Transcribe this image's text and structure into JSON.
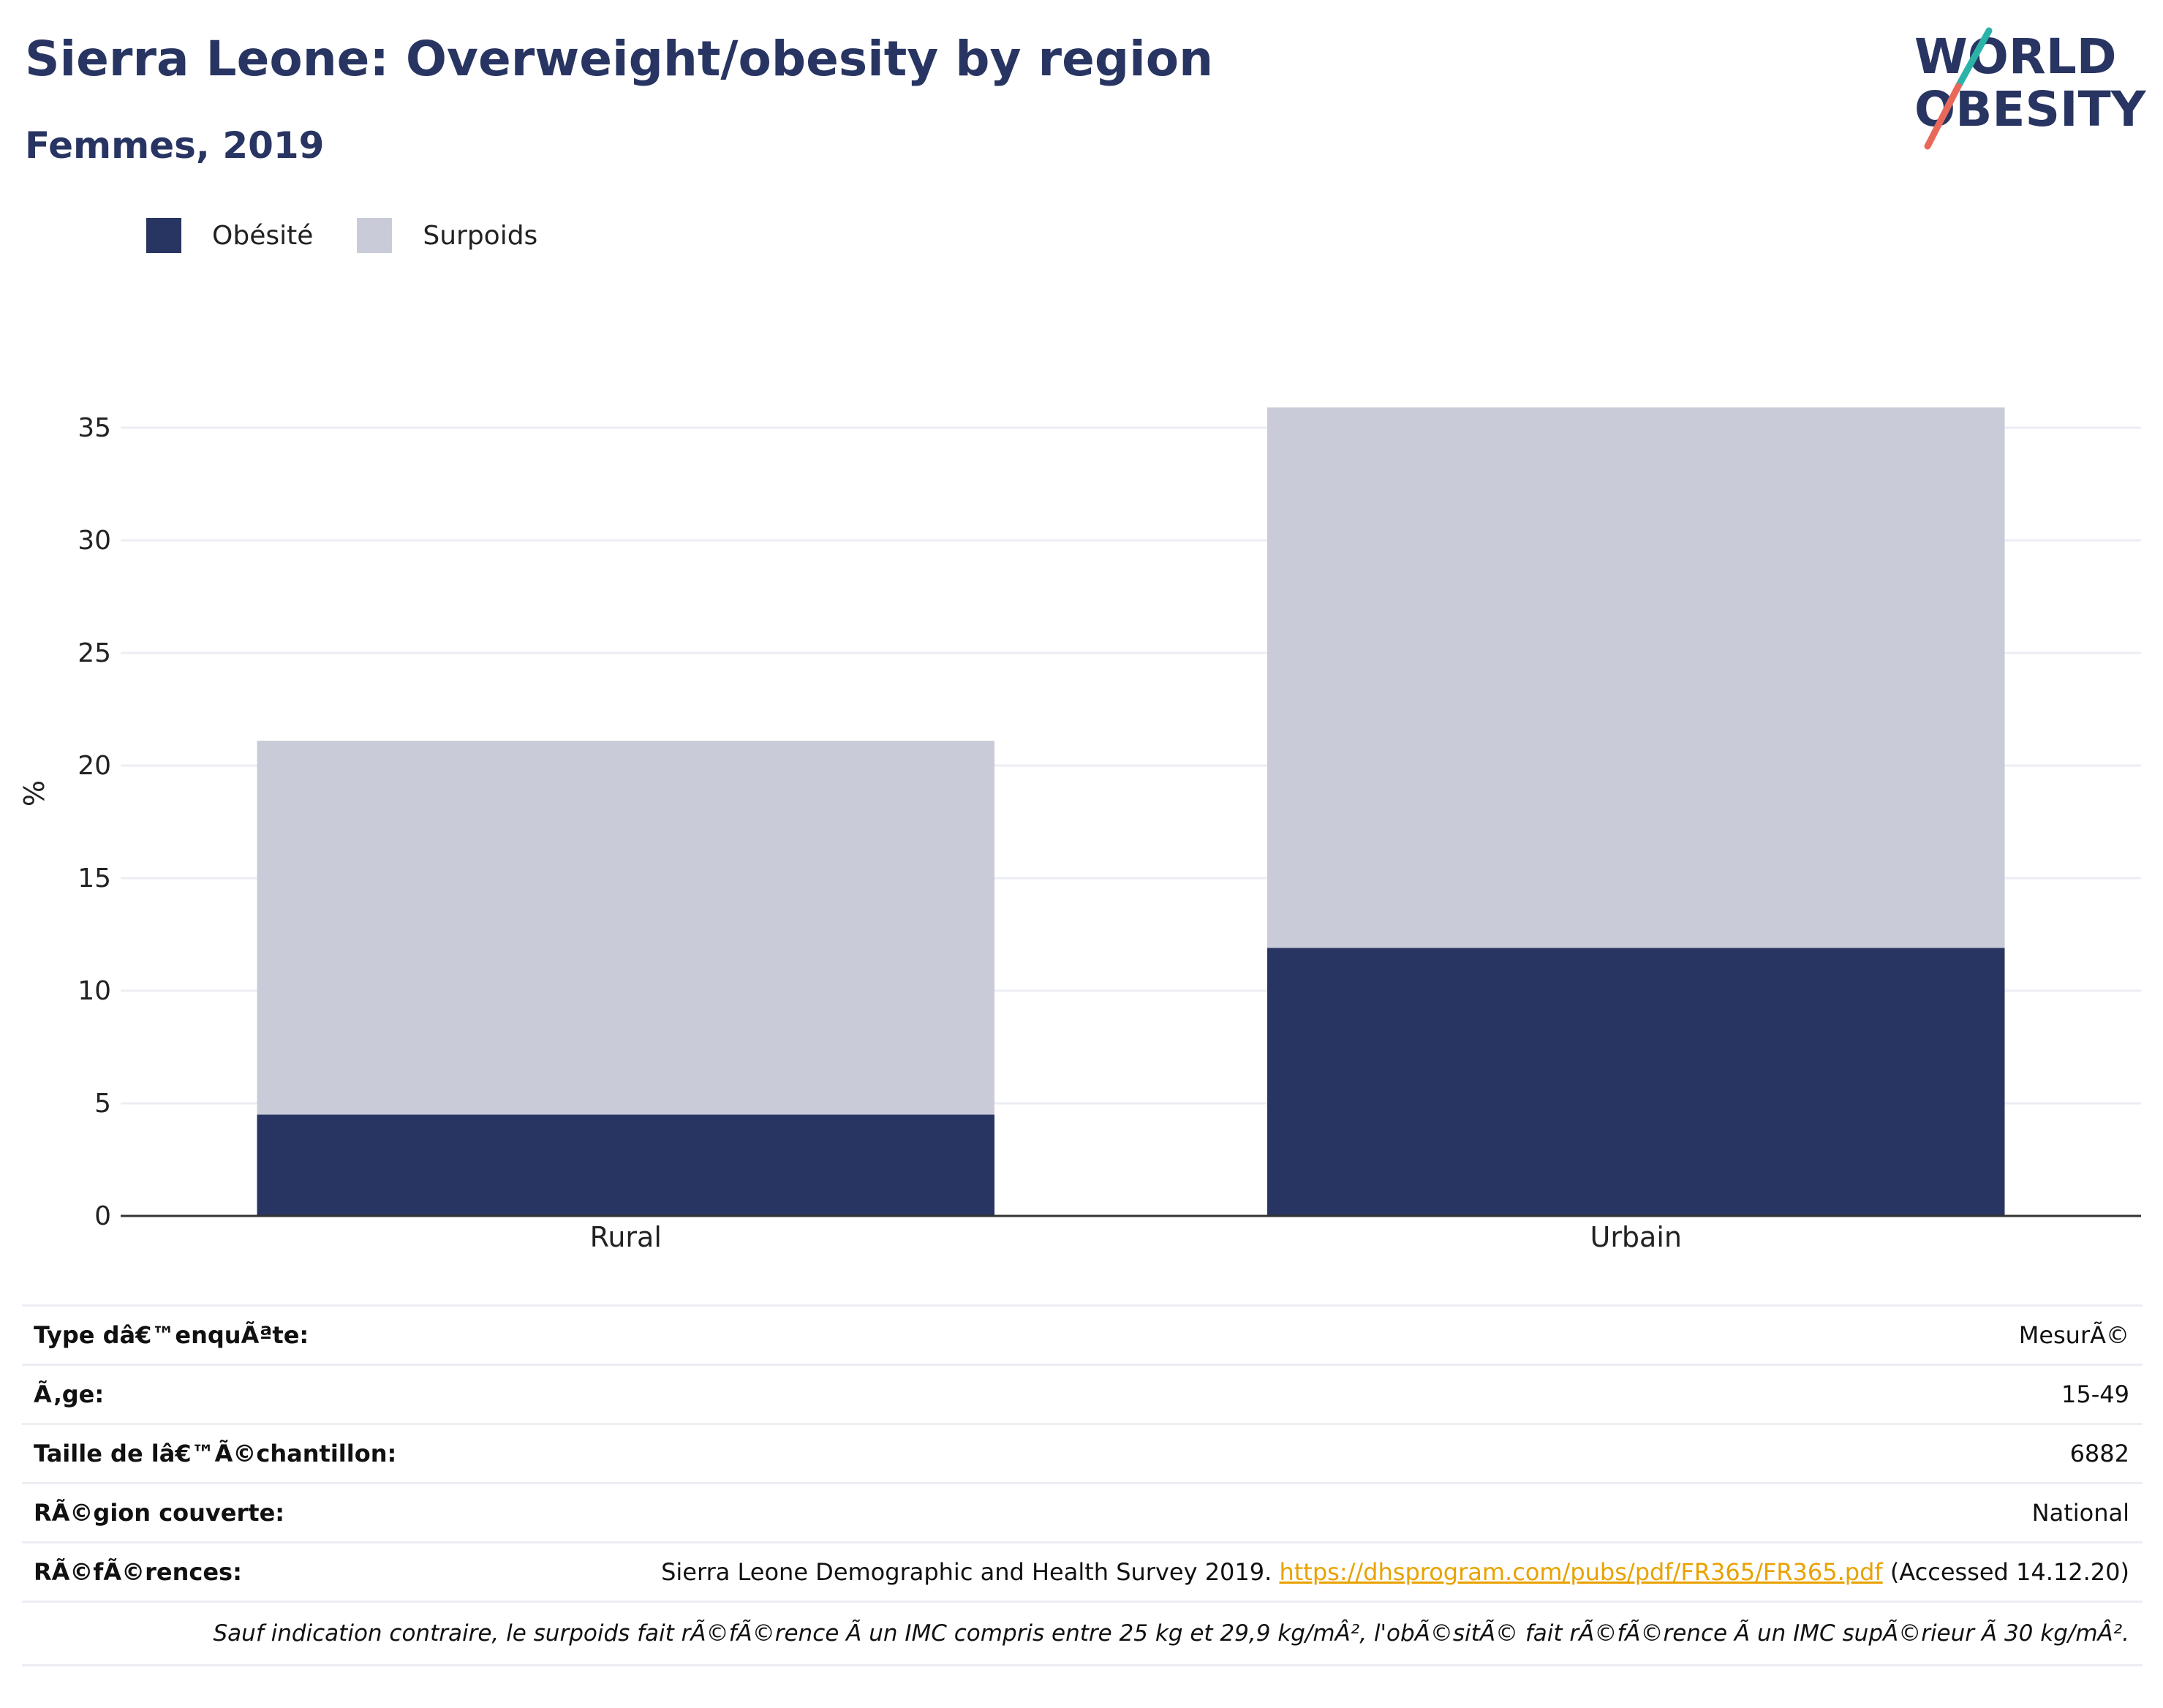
{
  "header": {
    "title": "Sierra Leone: Overweight/obesity by region",
    "subtitle": "Femmes, 2019"
  },
  "logo": {
    "line1": "WORLD",
    "line2": "OBESITY"
  },
  "colors": {
    "obesity": "#283562",
    "overweight": "#c9ccd8",
    "accent_teal": "#2bb3a8",
    "accent_red": "#e8685a"
  },
  "chart_data": {
    "type": "bar",
    "stacked": true,
    "categories": [
      "Rural",
      "Urbain"
    ],
    "series": [
      {
        "name": "Obésité",
        "values": [
          4.5,
          11.9
        ]
      },
      {
        "name": "Surpoids",
        "values": [
          16.6,
          24.0
        ]
      }
    ],
    "ylabel": "%",
    "xlabel": "",
    "ylim": [
      0,
      37
    ],
    "yticks": [
      0,
      5,
      10,
      15,
      20,
      25,
      30,
      35
    ],
    "grid": true,
    "legend_position": "top-left"
  },
  "info": {
    "rows": [
      {
        "label": "Type dâ€™enquÃªte:",
        "value": "MesurÃ©"
      },
      {
        "label": "Ã‚ge:",
        "value": "15-49"
      },
      {
        "label": "Taille de lâ€™Ã©chantillon:",
        "value": "6882"
      },
      {
        "label": "RÃ©gion couverte:",
        "value": "National"
      }
    ],
    "references": {
      "label": "RÃ©fÃ©rences:",
      "text_before": "Sierra Leone Demographic and Health Survey 2019. ",
      "link": "https://dhsprogram.com/pubs/pdf/FR365/FR365.pdf",
      "text_after": " (Accessed 14.12.20)"
    },
    "note": "Sauf indication contraire, le surpoids fait rÃ©fÃ©rence Ã  un IMC compris entre 25 kg et 29,9 kg/mÂ², l'obÃ©sitÃ© fait rÃ©fÃ©rence Ã  un IMC supÃ©rieur Ã  30 kg/mÂ²."
  }
}
